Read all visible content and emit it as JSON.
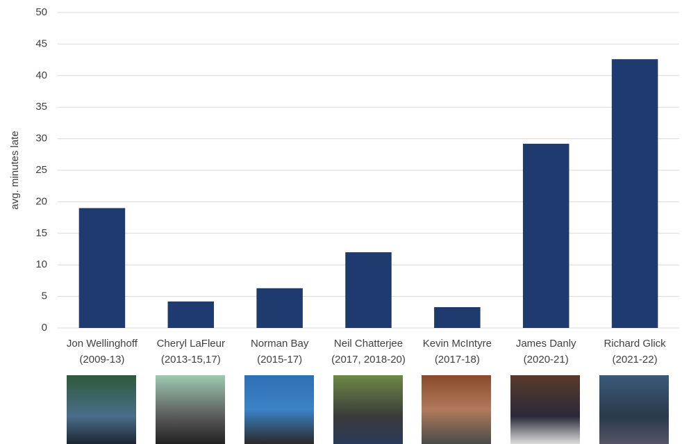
{
  "chart_data": {
    "type": "bar",
    "y_label": "avg. minutes late",
    "categories": [
      "Jon Wellinghoff\n(2009-13)",
      "Cheryl LaFleur\n(2013-15,17)",
      "Norman Bay\n(2015-17)",
      "Neil Chatterjee\n(2017, 2018-20)",
      "Kevin McIntyre\n(2017-18)",
      "James Danly\n(2020-21)",
      "Richard Glick\n(2021-22)"
    ],
    "values": [
      19,
      4.2,
      6.3,
      12,
      3.3,
      29.2,
      42.6
    ],
    "color": "#1f3a6e",
    "ylim": [
      0,
      50
    ],
    "yticks": [
      0,
      5,
      10,
      15,
      20,
      25,
      30,
      35,
      40,
      45,
      50
    ],
    "grid": true
  }
}
